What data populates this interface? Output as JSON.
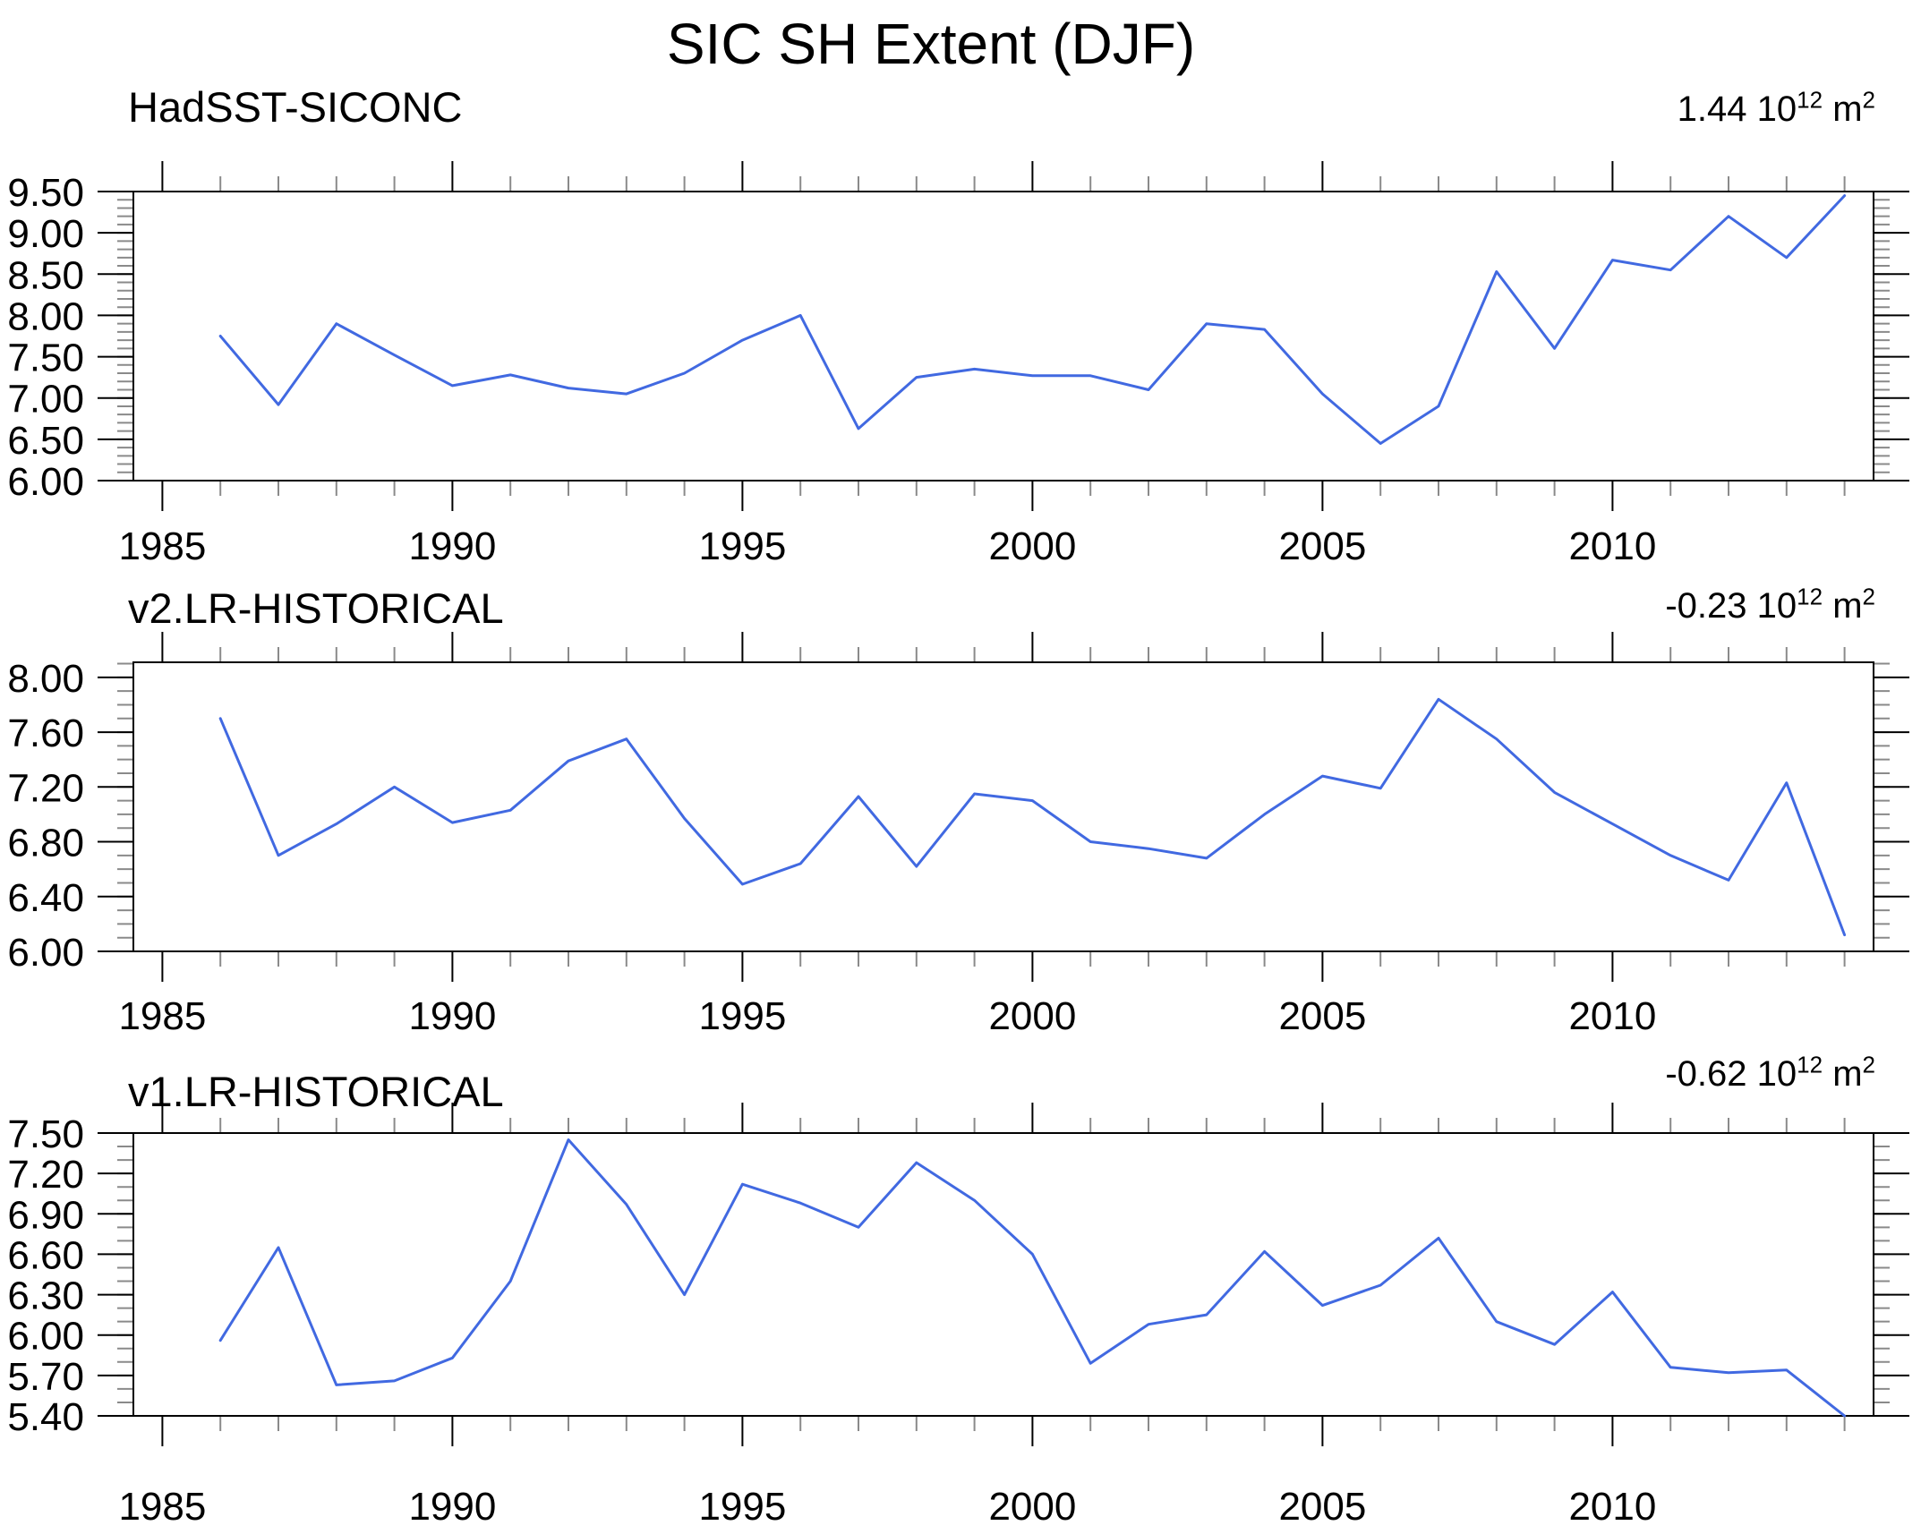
{
  "title": "SIC SH Extent (DJF)",
  "colors": {
    "line": "#4169e1",
    "axis": "#000000",
    "minor_tick": "#8a8a8a",
    "text": "#000000"
  },
  "panels": [
    {
      "label": "HadSST-SICONC",
      "annotation": {
        "value": "1.44",
        "base": "10",
        "exponent": "12",
        "unit": "m",
        "unit_exponent": "2"
      },
      "chart_data": {
        "type": "line",
        "title": "HadSST-SICONC",
        "x": [
          1986,
          1987,
          1988,
          1989,
          1990,
          1991,
          1992,
          1993,
          1994,
          1995,
          1996,
          1997,
          1998,
          1999,
          2000,
          2001,
          2002,
          2003,
          2004,
          2005,
          2006,
          2007,
          2008,
          2009,
          2010,
          2011,
          2012,
          2013,
          2014
        ],
        "values": [
          7.75,
          6.92,
          7.9,
          7.52,
          7.15,
          7.28,
          7.12,
          7.05,
          7.3,
          7.7,
          8.0,
          6.63,
          7.25,
          7.35,
          7.27,
          7.27,
          7.1,
          7.9,
          7.83,
          7.05,
          6.45,
          6.9,
          8.53,
          7.6,
          8.67,
          8.55,
          9.2,
          8.7,
          9.45
        ],
        "xlim": [
          1984.5,
          2014.5
        ],
        "ylim": [
          6.0,
          9.5
        ],
        "yticks_major": [
          6.0,
          6.5,
          7.0,
          7.5,
          8.0,
          8.5,
          9.0,
          9.5
        ],
        "ytick_labels": [
          "6.00",
          "6.50",
          "7.00",
          "7.50",
          "8.00",
          "8.50",
          "9.00",
          "9.50"
        ],
        "yminor_step": 0.1,
        "xticks_major": [
          1985,
          1990,
          1995,
          2000,
          2005,
          2010
        ],
        "xtick_labels": [
          "1985",
          "1990",
          "1995",
          "2000",
          "2005",
          "2010"
        ],
        "xminor_step": 1,
        "legend": "none",
        "grid": false
      }
    },
    {
      "label": "v2.LR-HISTORICAL",
      "annotation": {
        "value": "-0.23",
        "base": "10",
        "exponent": "12",
        "unit": "m",
        "unit_exponent": "2"
      },
      "chart_data": {
        "type": "line",
        "title": "v2.LR-HISTORICAL",
        "x": [
          1986,
          1987,
          1988,
          1989,
          1990,
          1991,
          1992,
          1993,
          1994,
          1995,
          1996,
          1997,
          1998,
          1999,
          2000,
          2001,
          2002,
          2003,
          2004,
          2005,
          2006,
          2007,
          2008,
          2009,
          2010,
          2011,
          2012,
          2013,
          2014
        ],
        "values": [
          7.7,
          6.7,
          6.93,
          7.2,
          6.94,
          7.03,
          7.39,
          7.55,
          6.97,
          6.49,
          6.64,
          7.13,
          6.62,
          7.15,
          7.1,
          6.8,
          6.75,
          6.68,
          7.0,
          7.28,
          7.19,
          7.84,
          7.55,
          7.16,
          6.93,
          6.7,
          6.52,
          7.23,
          6.12
        ],
        "xlim": [
          1984.5,
          2014.5
        ],
        "ylim": [
          6.0,
          8.11
        ],
        "yticks_major": [
          6.0,
          6.4,
          6.8,
          7.2,
          7.6,
          8.0
        ],
        "ytick_labels": [
          "6.00",
          "6.40",
          "6.80",
          "7.20",
          "7.60",
          "8.00"
        ],
        "yminor_step": 0.1,
        "xticks_major": [
          1985,
          1990,
          1995,
          2000,
          2005,
          2010
        ],
        "xtick_labels": [
          "1985",
          "1990",
          "1995",
          "2000",
          "2005",
          "2010"
        ],
        "xminor_step": 1,
        "legend": "none",
        "grid": false
      }
    },
    {
      "label": "v1.LR-HISTORICAL",
      "annotation": {
        "value": "-0.62",
        "base": "10",
        "exponent": "12",
        "unit": "m",
        "unit_exponent": "2"
      },
      "chart_data": {
        "type": "line",
        "title": "v1.LR-HISTORICAL",
        "x": [
          1986,
          1987,
          1988,
          1989,
          1990,
          1991,
          1992,
          1993,
          1994,
          1995,
          1996,
          1997,
          1998,
          1999,
          2000,
          2001,
          2002,
          2003,
          2004,
          2005,
          2006,
          2007,
          2008,
          2009,
          2010,
          2011,
          2012,
          2013,
          2014
        ],
        "values": [
          5.96,
          6.65,
          5.63,
          5.66,
          5.83,
          6.4,
          7.45,
          6.97,
          6.3,
          7.12,
          6.98,
          6.8,
          7.28,
          7.0,
          6.6,
          5.79,
          6.08,
          6.15,
          6.62,
          6.22,
          6.37,
          6.72,
          6.1,
          5.93,
          6.32,
          5.76,
          5.72,
          5.74,
          5.4
        ],
        "xlim": [
          1984.5,
          2014.5
        ],
        "ylim": [
          5.4,
          7.5
        ],
        "yticks_major": [
          5.4,
          5.7,
          6.0,
          6.3,
          6.6,
          6.9,
          7.2,
          7.5
        ],
        "ytick_labels": [
          "5.40",
          "5.70",
          "6.00",
          "6.30",
          "6.60",
          "6.90",
          "7.20",
          "7.50"
        ],
        "yminor_step": 0.1,
        "xticks_major": [
          1985,
          1990,
          1995,
          2000,
          2005,
          2010
        ],
        "xtick_labels": [
          "1985",
          "1990",
          "1995",
          "2000",
          "2005",
          "2010"
        ],
        "xminor_step": 1,
        "legend": "none",
        "grid": false
      }
    }
  ]
}
